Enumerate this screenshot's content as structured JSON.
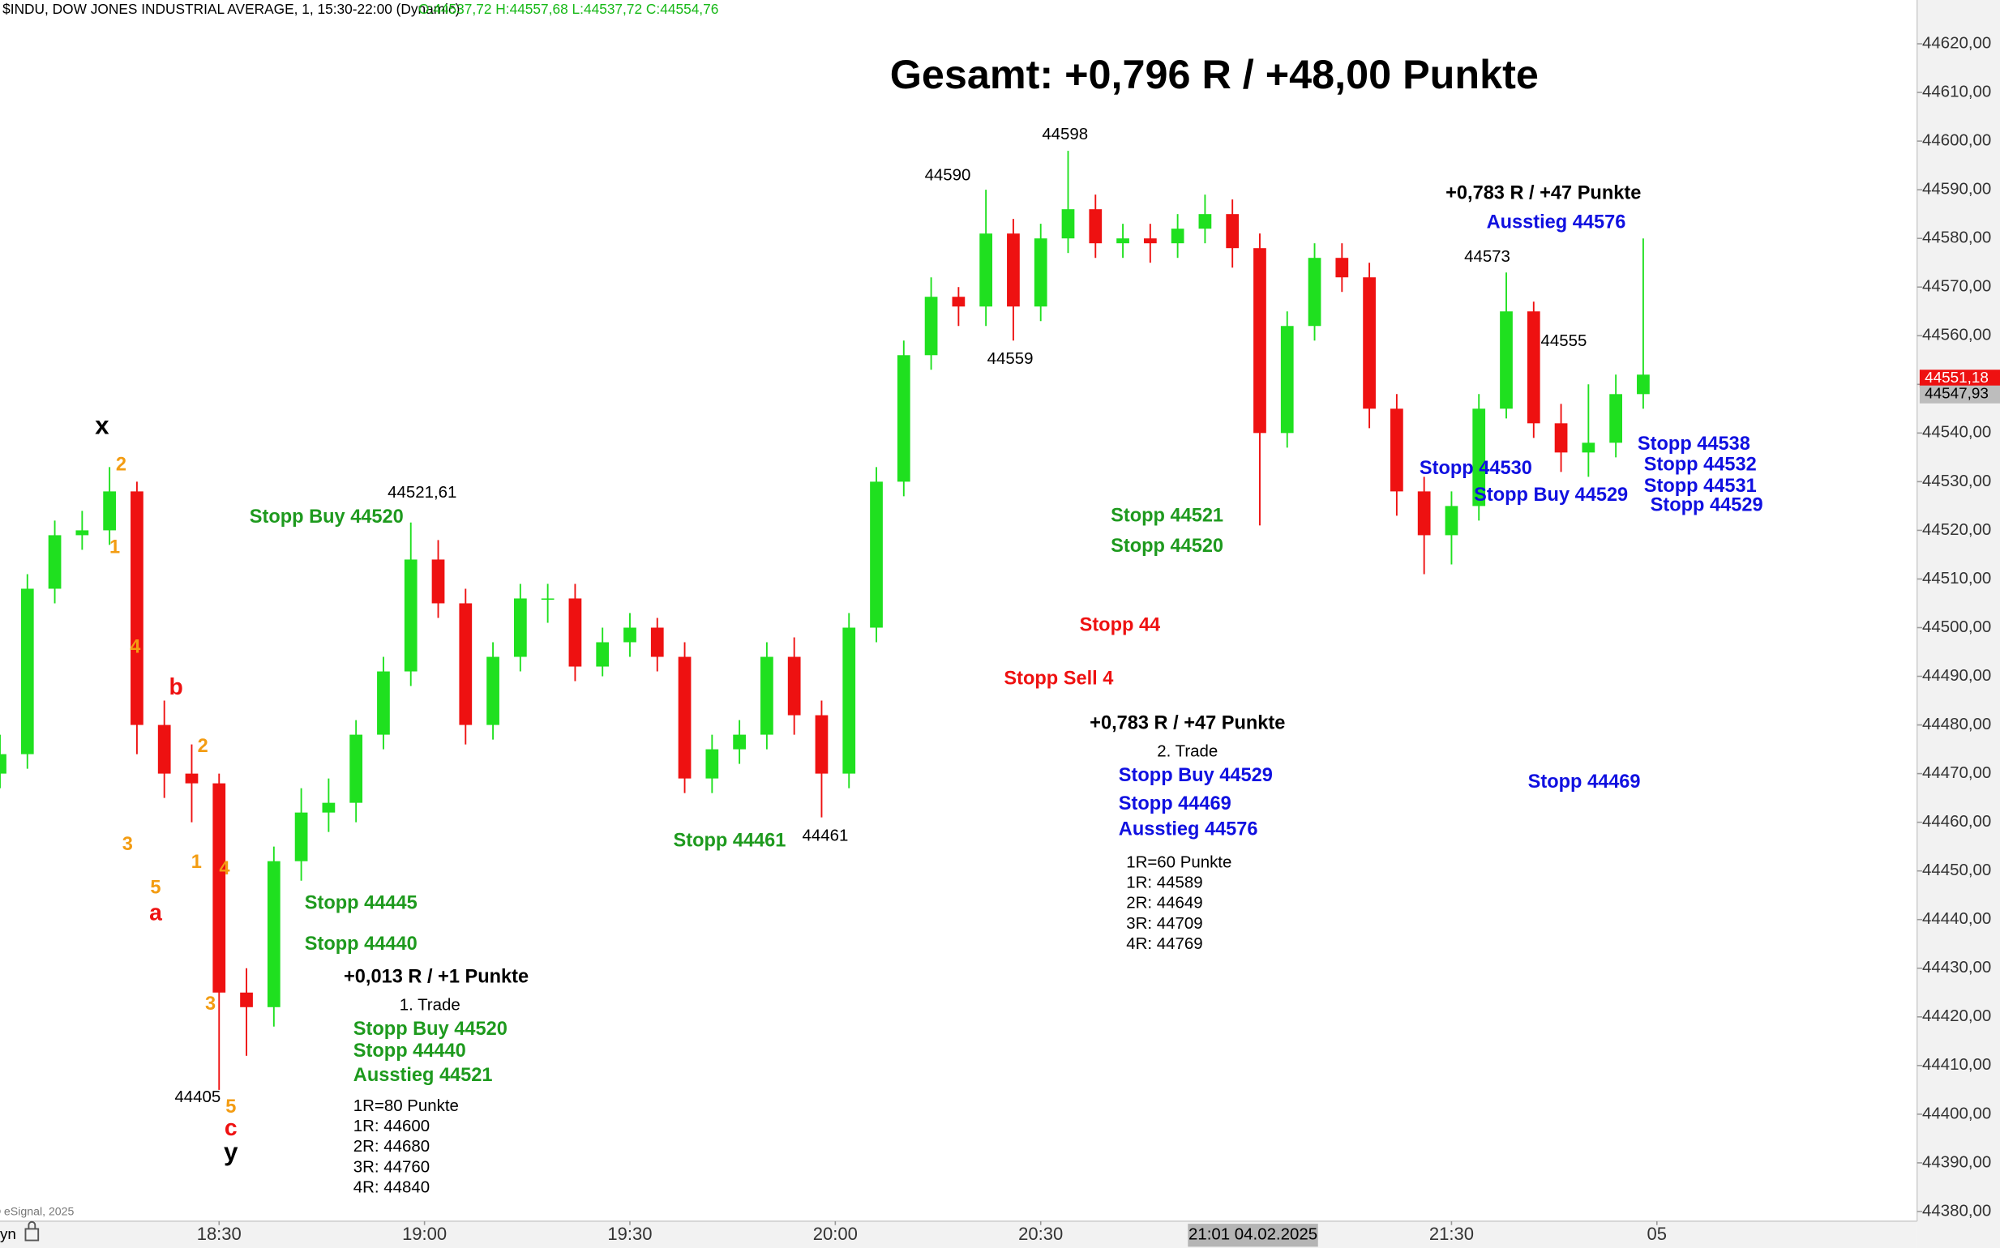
{
  "chart_data": {
    "type": "candlestick",
    "header": "$INDU, DOW JONES INDUSTRIAL AVERAGE, 1, 15:30-22:00 (Dynamic)",
    "ohlc_info": "O:44537,72 H:44557,68 L:44537,72 C:44554,76",
    "title": "Gesamt: +0,796 R / +48,00 Punkte",
    "copyright": "© eSignal, 2025",
    "corner_text": "yn",
    "up_color": "#1fe01f",
    "down_color": "#ee1111",
    "xlim": [
      "17:58",
      "22:38"
    ],
    "ylim": [
      44378,
      44629
    ],
    "x": [
      "17:58",
      "18:02",
      "18:06",
      "18:10",
      "18:14",
      "18:18",
      "18:22",
      "18:26",
      "18:30",
      "18:34",
      "18:38",
      "18:42",
      "18:46",
      "18:50",
      "18:54",
      "18:58",
      "19:02",
      "19:06",
      "19:10",
      "19:14",
      "19:18",
      "19:22",
      "19:26",
      "19:30",
      "19:34",
      "19:38",
      "19:42",
      "19:46",
      "19:50",
      "19:54",
      "19:58",
      "20:02",
      "20:06",
      "20:10",
      "20:14",
      "20:18",
      "20:22",
      "20:26",
      "20:30",
      "20:34",
      "20:38",
      "20:42",
      "20:46",
      "20:50",
      "20:54",
      "20:58",
      "21:02",
      "21:06",
      "21:10",
      "21:14",
      "21:18",
      "21:22",
      "21:26",
      "21:30",
      "21:34",
      "21:38",
      "21:42",
      "21:46",
      "21:50",
      "21:54",
      "21:58"
    ],
    "open": [
      44470,
      44474,
      44508,
      44519,
      44520,
      44528,
      44480,
      44470,
      44468,
      44425,
      44422,
      44452,
      44462,
      44464,
      44478,
      44491,
      44514,
      44505,
      44480,
      44494,
      44506,
      44506,
      44492,
      44497,
      44500,
      44494,
      44469,
      44475,
      44478,
      44494,
      44482,
      44470,
      44500,
      44530,
      44556,
      44568,
      44566,
      44581,
      44566,
      44580,
      44586,
      44579,
      44580,
      44579,
      44582,
      44585,
      44578,
      44540,
      44562,
      44576,
      44572,
      44545,
      44528,
      44519,
      44525,
      44545,
      44565,
      44542,
      44536,
      44538,
      44548
    ],
    "high": [
      44478,
      44511,
      44522,
      44524,
      44533,
      44530,
      44485,
      44476,
      44470,
      44430,
      44455,
      44467,
      44469,
      44481,
      44494,
      44521.61,
      44518,
      44508,
      44497,
      44509,
      44509,
      44509,
      44500,
      44503,
      44502,
      44497,
      44478,
      44481,
      44497,
      44498,
      44485,
      44503,
      44533,
      44559,
      44572,
      44570,
      44590,
      44584,
      44583,
      44598,
      44589,
      44583,
      44583,
      44585,
      44589,
      44588,
      44581,
      44565,
      44579,
      44579,
      44575,
      44548,
      44531,
      44528,
      44548,
      44573,
      44567,
      44546,
      44550,
      44552,
      44580
    ],
    "low": [
      44467,
      44471,
      44505,
      44516,
      44517,
      44474,
      44465,
      44460,
      44405,
      44412,
      44418,
      44448,
      44458,
      44460,
      44475,
      44488,
      44502,
      44476,
      44477,
      44491,
      44501,
      44489,
      44490,
      44494,
      44491,
      44466,
      44466,
      44472,
      44475,
      44478,
      44461,
      44467,
      44497,
      44527,
      44553,
      44562,
      44562,
      44559,
      44563,
      44577,
      44576,
      44576,
      44575,
      44576,
      44579,
      44574,
      44521,
      44537,
      44559,
      44569,
      44541,
      44523,
      44511,
      44513,
      44522,
      44543,
      44539,
      44532,
      44531,
      44535,
      44545
    ],
    "close": [
      44474,
      44508,
      44519,
      44520,
      44528,
      44480,
      44470,
      44468,
      44425,
      44422,
      44452,
      44462,
      44464,
      44478,
      44491,
      44514,
      44505,
      44480,
      44494,
      44506,
      44506,
      44492,
      44497,
      44500,
      44494,
      44469,
      44475,
      44478,
      44494,
      44482,
      44470,
      44500,
      44530,
      44556,
      44568,
      44566,
      44581,
      44566,
      44580,
      44586,
      44579,
      44580,
      44579,
      44582,
      44585,
      44578,
      44540,
      44562,
      44576,
      44572,
      44545,
      44528,
      44519,
      44525,
      44545,
      44565,
      44542,
      44536,
      44538,
      44548,
      44552
    ],
    "yticks": [
      {
        "value": 44380,
        "label": "44380,00"
      },
      {
        "value": 44390,
        "label": "44390,00"
      },
      {
        "value": 44400,
        "label": "44400,00"
      },
      {
        "value": 44410,
        "label": "44410,00"
      },
      {
        "value": 44420,
        "label": "44420,00"
      },
      {
        "value": 44430,
        "label": "44430,00"
      },
      {
        "value": 44440,
        "label": "44440,00"
      },
      {
        "value": 44450,
        "label": "44450,00"
      },
      {
        "value": 44460,
        "label": "44460,00"
      },
      {
        "value": 44470,
        "label": "44470,00"
      },
      {
        "value": 44480,
        "label": "44480,00"
      },
      {
        "value": 44490,
        "label": "44490,00"
      },
      {
        "value": 44500,
        "label": "44500,00"
      },
      {
        "value": 44510,
        "label": "44510,00"
      },
      {
        "value": 44520,
        "label": "44520,00"
      },
      {
        "value": 44530,
        "label": "44530,00"
      },
      {
        "value": 44540,
        "label": "44540,00"
      },
      {
        "value": 44550,
        "label": "44550,00"
      },
      {
        "value": 44560,
        "label": "44560,00"
      },
      {
        "value": 44570,
        "label": "44570,00"
      },
      {
        "value": 44580,
        "label": "44580,00"
      },
      {
        "value": 44590,
        "label": "44590,00"
      },
      {
        "value": 44600,
        "label": "44600,00"
      },
      {
        "value": 44610,
        "label": "44610,00"
      },
      {
        "value": 44620,
        "label": "44620,00"
      }
    ],
    "xticks": [
      "18:30",
      "19:00",
      "19:30",
      "20:00",
      "20:30",
      "21:30",
      {
        "value": "22:00",
        "label": "05"
      }
    ],
    "cursor": {
      "value": "21:01",
      "label": "21:01 04.02.2025"
    },
    "price_labels": [
      {
        "value": 44551.18,
        "label": "44551,18",
        "color": "#ee1111"
      },
      {
        "value": 44547.93,
        "label": "44547,93",
        "color": "#bdbdbd"
      }
    ],
    "annotations": [
      {
        "text": "x",
        "color": "#000000"
      },
      {
        "text": "2",
        "color": "#f39c12"
      },
      {
        "text": "1",
        "color": "#f39c12"
      },
      {
        "text": "4",
        "color": "#f39c12"
      },
      {
        "text": "b",
        "color": "#ee1111"
      },
      {
        "text": "2",
        "color": "#f39c12"
      },
      {
        "text": "3",
        "color": "#f39c12"
      },
      {
        "text": "5",
        "color": "#f39c12"
      },
      {
        "text": "a",
        "color": "#ee1111"
      },
      {
        "text": "1",
        "color": "#f39c12"
      },
      {
        "text": "4",
        "color": "#f39c12"
      },
      {
        "text": "3",
        "color": "#f39c12"
      },
      {
        "text": "5",
        "color": "#f39c12"
      },
      {
        "text": "c",
        "color": "#ee1111"
      },
      {
        "text": "y",
        "color": "#000000"
      },
      {
        "text": "44405",
        "color": "#000000"
      },
      {
        "text": "44521,61",
        "color": "#000000"
      },
      {
        "text": "Stopp Buy 44520",
        "color": "#1e9a1e"
      },
      {
        "text": "Stopp 44445",
        "color": "#1e9a1e"
      },
      {
        "text": "Stopp 44440",
        "color": "#1e9a1e"
      },
      {
        "text": "+0,013 R / +1 Punkte",
        "color": "#000000"
      },
      {
        "text": "1. Trade",
        "color": "#000000"
      },
      {
        "text": "Stopp Buy 44520",
        "color": "#1e9a1e"
      },
      {
        "text": "Stopp 44440",
        "color": "#1e9a1e"
      },
      {
        "text": "Ausstieg 44521",
        "color": "#1e9a1e"
      },
      {
        "text": "1R=80 Punkte",
        "color": "#000000"
      },
      {
        "text": "1R: 44600",
        "color": "#000000"
      },
      {
        "text": "2R: 44680",
        "color": "#000000"
      },
      {
        "text": "3R: 44760",
        "color": "#000000"
      },
      {
        "text": "4R: 44840",
        "color": "#000000"
      },
      {
        "text": "Stopp 44461",
        "color": "#1e9a1e"
      },
      {
        "text": "44461",
        "color": "#000000"
      },
      {
        "text": "44590",
        "color": "#000000"
      },
      {
        "text": "44598",
        "color": "#000000"
      },
      {
        "text": "44559",
        "color": "#000000"
      },
      {
        "text": "Stopp 44521",
        "color": "#1e9a1e"
      },
      {
        "text": "Stopp 44520",
        "color": "#1e9a1e"
      },
      {
        "text": "Stopp 44",
        "color": "#ee1111"
      },
      {
        "text": "Stopp Sell 4",
        "color": "#ee1111"
      },
      {
        "text": "+0,783 R / +47 Punkte",
        "color": "#000000"
      },
      {
        "text": "2. Trade",
        "color": "#000000"
      },
      {
        "text": "Stopp Buy 44529",
        "color": "#1010e0"
      },
      {
        "text": "Stopp 44469",
        "color": "#1010e0"
      },
      {
        "text": "Ausstieg 44576",
        "color": "#1010e0"
      },
      {
        "text": "1R=60 Punkte",
        "color": "#000000"
      },
      {
        "text": "1R: 44589",
        "color": "#000000"
      },
      {
        "text": "2R: 44649",
        "color": "#000000"
      },
      {
        "text": "3R: 44709",
        "color": "#000000"
      },
      {
        "text": "4R: 44769",
        "color": "#000000"
      },
      {
        "text": "+0,783 R / +47 Punkte",
        "color": "#000000"
      },
      {
        "text": "Ausstieg 44576",
        "color": "#1010e0"
      },
      {
        "text": "44573",
        "color": "#000000"
      },
      {
        "text": "44555",
        "color": "#000000"
      },
      {
        "text": "Stopp 44530",
        "color": "#1010e0"
      },
      {
        "text": "Stopp Buy 44529",
        "color": "#1010e0"
      },
      {
        "text": "Stopp 44538",
        "color": "#1010e0"
      },
      {
        "text": "Stopp 44532",
        "color": "#1010e0"
      },
      {
        "text": "Stopp 44531",
        "color": "#1010e0"
      },
      {
        "text": "Stopp 44529",
        "color": "#1010e0"
      },
      {
        "text": "Stopp 44469",
        "color": "#1010e0"
      }
    ]
  }
}
